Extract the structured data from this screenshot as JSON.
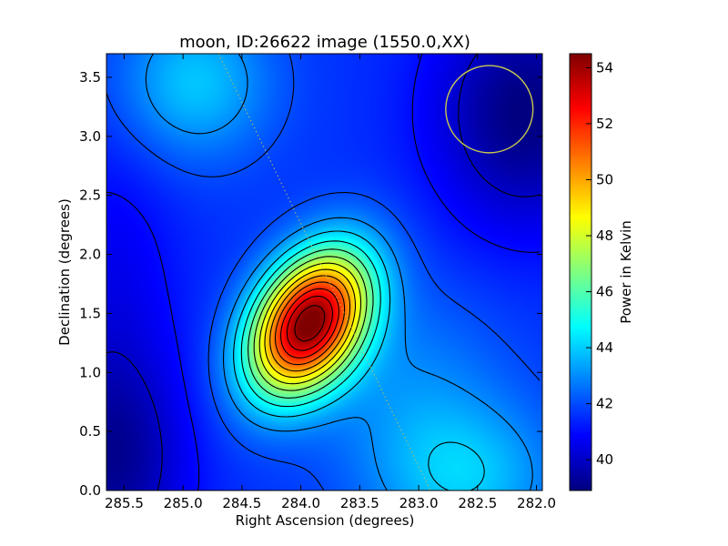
{
  "chart_data": {
    "type": "heatmap",
    "title": "moon, ID:26622 image (1550.0,XX)",
    "xlabel": "Right Ascension (degrees)",
    "ylabel": "Declination (degrees)",
    "colorbar_label": "Power in Kelvin",
    "xlim": [
      285.65,
      281.95
    ],
    "ylim": [
      0.0,
      3.7
    ],
    "xticks": [
      "285.5",
      "285.0",
      "284.5",
      "284.0",
      "283.5",
      "283.0",
      "282.5",
      "282.0"
    ],
    "xtick_values": [
      285.5,
      285.0,
      284.5,
      284.0,
      283.5,
      283.0,
      282.5,
      282.0
    ],
    "yticks": [
      "0.0",
      "0.5",
      "1.0",
      "1.5",
      "2.0",
      "2.5",
      "3.0",
      "3.5"
    ],
    "ytick_values": [
      0.0,
      0.5,
      1.0,
      1.5,
      2.0,
      2.5,
      3.0,
      3.5
    ],
    "colorbar_range": [
      38.9,
      54.5
    ],
    "colorbar_ticks": [
      "40",
      "42",
      "44",
      "46",
      "48",
      "50",
      "52",
      "54"
    ],
    "colorbar_tick_values": [
      40,
      42,
      44,
      46,
      48,
      50,
      52,
      54
    ],
    "colormap": "jet",
    "peak": {
      "ra": 283.93,
      "dec": 1.42,
      "value": 54.5
    },
    "contour_color": "#000000",
    "marker_circle": {
      "ra": 282.4,
      "dec": 3.23,
      "radius_deg": 0.37,
      "color": "#c8c850"
    },
    "dotted_track": {
      "from": {
        "ra": 284.7,
        "dec": 3.7
      },
      "to": {
        "ra": 282.9,
        "dec": 0.0
      },
      "color": "#bbbb66"
    }
  }
}
